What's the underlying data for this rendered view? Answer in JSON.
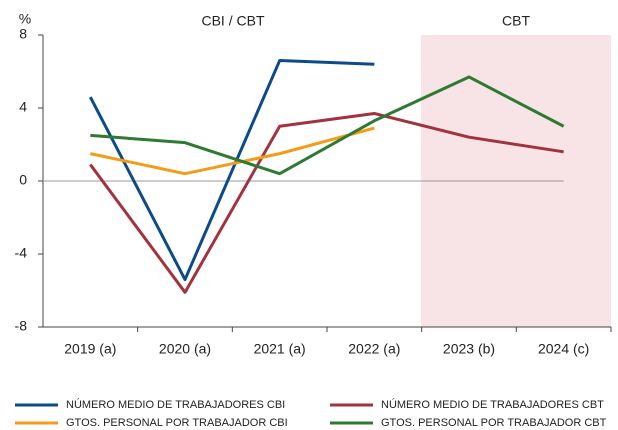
{
  "chart_data": {
    "type": "line",
    "y_unit": "%",
    "annotations": [
      "CBI / CBT",
      "CBT"
    ],
    "categories": [
      "2019 (a)",
      "2020 (a)",
      "2021 (a)",
      "2022 (a)",
      "2023 (b)",
      "2024 (c)"
    ],
    "series": [
      {
        "name": "NÚMERO MEDIO DE TRABAJADORES CBI",
        "color": "#0d4a8a",
        "values": [
          4.6,
          -5.4,
          6.6,
          6.4,
          null,
          null
        ]
      },
      {
        "name": "NÚMERO MEDIO DE TRABAJADORES CBT",
        "color": "#a3323f",
        "values": [
          0.9,
          -6.1,
          3.0,
          3.7,
          2.4,
          1.6
        ]
      },
      {
        "name": "GTOS. PERSONAL POR TRABAJADOR CBI",
        "color": "#f39c17",
        "values": [
          1.5,
          0.4,
          1.5,
          2.9,
          null,
          null
        ]
      },
      {
        "name": "GTOS. PERSONAL POR TRABAJADOR CBT",
        "color": "#2e7a32",
        "values": [
          2.5,
          2.1,
          0.4,
          3.3,
          5.7,
          3.0
        ]
      }
    ],
    "ylim": [
      -8,
      8
    ],
    "yticks": [
      -8,
      -4,
      0,
      4,
      8
    ],
    "zero_line": true
  }
}
